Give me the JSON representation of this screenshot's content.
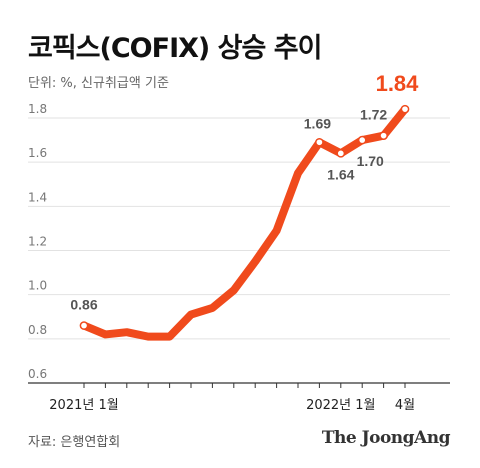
{
  "title": "코픽스(COFIX) 상승 추이",
  "unit_note": "단위: %, 신규취급액 기준",
  "source": "자료: 은행연합회",
  "brand": "The JoongAng",
  "chart_data": {
    "type": "line",
    "title": "코픽스(COFIX) 상승 추이",
    "ylim": [
      0.6,
      1.8
    ],
    "yticks": [
      "0.6",
      "0.8",
      "1.0",
      "1.2",
      "1.4",
      "1.6",
      "1.8"
    ],
    "x_tick_labels": [
      {
        "index": 0,
        "label": "2021년 1월"
      },
      {
        "index": 12,
        "label": "2022년 1월"
      },
      {
        "index": 15,
        "label": "4월"
      }
    ],
    "values": [
      0.86,
      0.82,
      0.83,
      0.81,
      0.81,
      0.91,
      0.94,
      1.02,
      1.15,
      1.29,
      1.55,
      1.69,
      1.64,
      1.7,
      1.72,
      1.84
    ],
    "data_labels": [
      {
        "index": 0,
        "label": "0.86"
      },
      {
        "index": 11,
        "label": "1.69"
      },
      {
        "index": 12,
        "label": "1.64"
      },
      {
        "index": 13,
        "label": "1.70"
      },
      {
        "index": 14,
        "label": "1.72"
      },
      {
        "index": 15,
        "label": "1.84"
      }
    ],
    "line_color": "#f04a1c",
    "highlight_color": "#f04a1c",
    "grid": true
  }
}
